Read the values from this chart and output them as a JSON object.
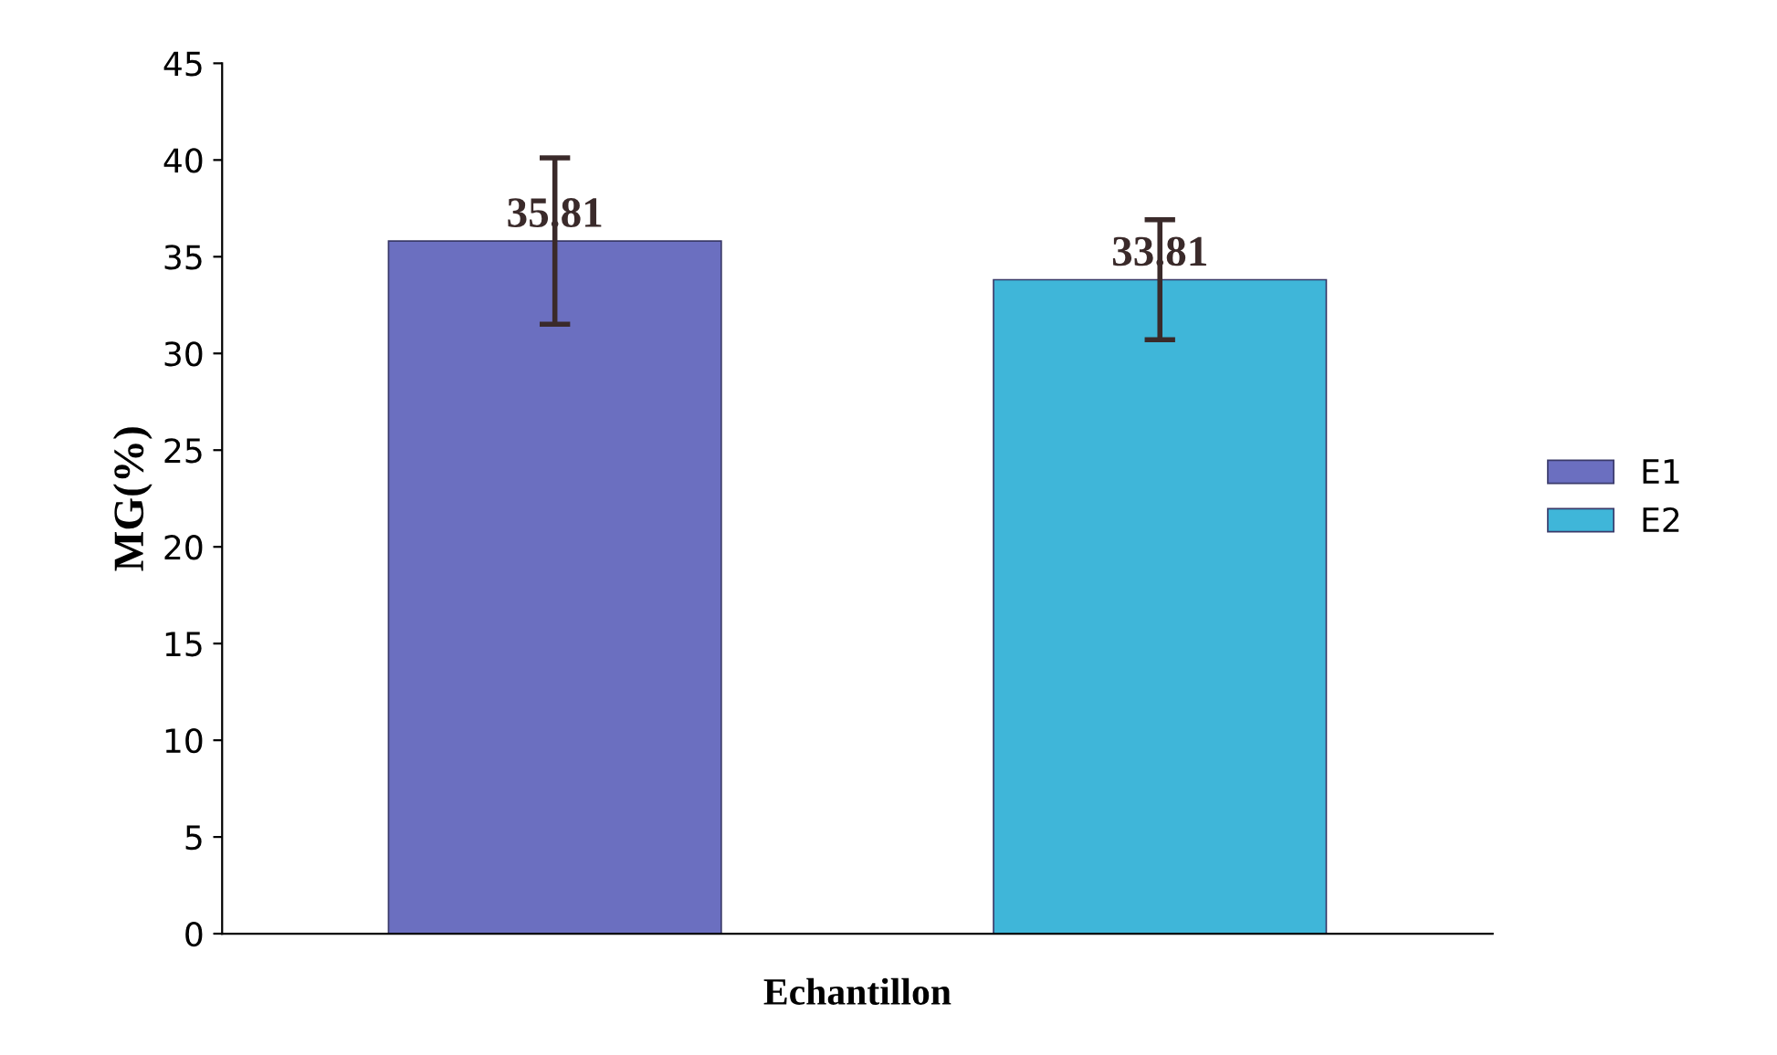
{
  "chart_data": {
    "type": "bar",
    "xlabel": "Echantillon",
    "ylabel": "MG(%)",
    "categories": [
      null,
      null
    ],
    "series": [
      {
        "name": "E1",
        "color": "#6b6fc0",
        "values": [
          35.81,
          null
        ],
        "errors": [
          4.3,
          null
        ]
      },
      {
        "name": "E2",
        "color": "#3fb6d9",
        "values": [
          null,
          33.81
        ],
        "errors": [
          null,
          3.1
        ]
      }
    ],
    "ylim": [
      0,
      45
    ],
    "yticks": [
      0,
      5,
      10,
      15,
      20,
      25,
      30,
      35,
      40,
      45
    ],
    "data_labels": true,
    "legend": "right",
    "grid": false
  }
}
